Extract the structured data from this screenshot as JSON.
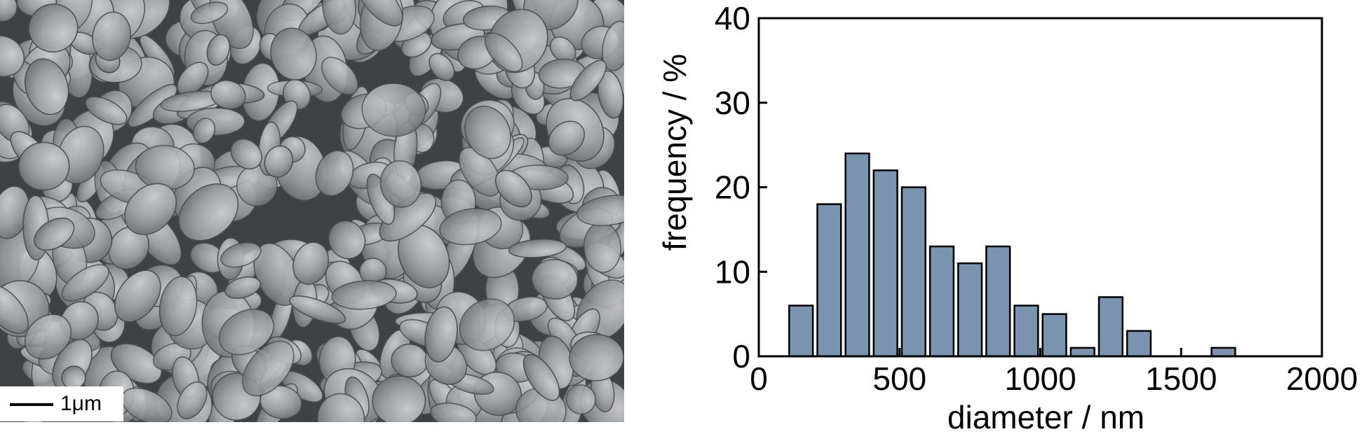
{
  "micrograph": {
    "scale_bar_label": "1μm"
  },
  "colors": {
    "bar_fill": "#7a94b0",
    "bar_stroke": "#000000",
    "axis": "#000000"
  },
  "chart_data": {
    "type": "bar",
    "title": "",
    "xlabel": "diameter / nm",
    "ylabel": "frequency / %",
    "xlim": [
      0,
      2000
    ],
    "ylim": [
      0,
      40
    ],
    "bin_width": 100,
    "x_ticks": [
      0,
      500,
      1000,
      1500,
      2000
    ],
    "y_ticks": [
      0,
      10,
      20,
      30,
      40
    ],
    "bins": [
      {
        "x": 150,
        "value": 6
      },
      {
        "x": 250,
        "value": 18
      },
      {
        "x": 350,
        "value": 24
      },
      {
        "x": 450,
        "value": 22
      },
      {
        "x": 550,
        "value": 20
      },
      {
        "x": 650,
        "value": 13
      },
      {
        "x": 750,
        "value": 11
      },
      {
        "x": 850,
        "value": 13
      },
      {
        "x": 950,
        "value": 6
      },
      {
        "x": 1050,
        "value": 5
      },
      {
        "x": 1150,
        "value": 1
      },
      {
        "x": 1250,
        "value": 7
      },
      {
        "x": 1350,
        "value": 3
      },
      {
        "x": 1650,
        "value": 1
      }
    ],
    "grid": false,
    "legend": "none"
  }
}
